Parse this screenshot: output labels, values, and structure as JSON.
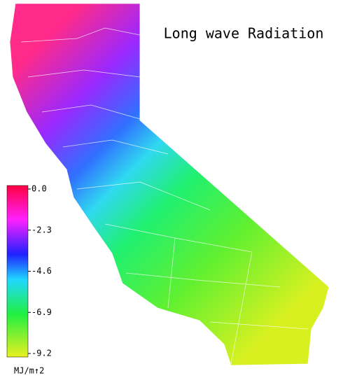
{
  "title": "Long wave Radiation",
  "colorbar": {
    "lim": [
      -9.2,
      0
    ],
    "ticks": [
      {
        "value": 0,
        "label": "0.0"
      },
      -2.3,
      -4.6,
      -6.9,
      -9.2
    ],
    "unit": "MJ/m↑2"
  }
}
